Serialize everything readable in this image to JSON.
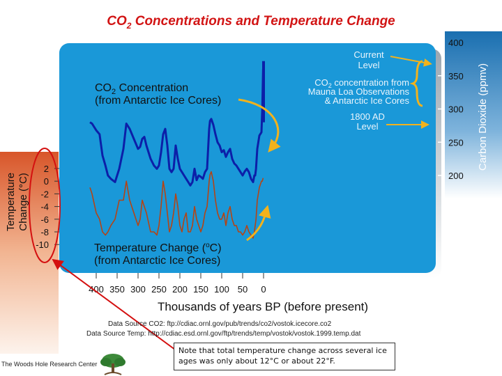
{
  "title_main": "CO",
  "title_sub": "2",
  "title_rest": " Concentrations and Temperature Change",
  "chart_data": {
    "type": "line",
    "xlabel": "Thousands of years BP (before present)",
    "x_ticks": [
      "400",
      "350",
      "300",
      "250",
      "200",
      "150",
      "100",
      "50",
      "0"
    ],
    "xlim": [
      400,
      0
    ],
    "y_right": {
      "label": "Carbon Dioxide (ppmv)",
      "ticks": [
        "400",
        "350",
        "300",
        "250",
        "200"
      ],
      "ylim": [
        180,
        400
      ]
    },
    "y_left": {
      "label_line1": "Temperature",
      "label_line2": "Change   (°C)",
      "ticks": [
        "2",
        "0",
        "-2",
        "-4",
        "-6",
        "-8",
        "-10"
      ],
      "ylim": [
        -10,
        2
      ]
    },
    "series": [
      {
        "name": "CO2 Concentration (from Antarctic Ice Cores)",
        "axis": "right",
        "color": "#0c1fa8",
        "x": [
          415,
          410,
          400,
          392,
          385,
          378,
          372,
          365,
          355,
          345,
          335,
          328,
          320,
          310,
          300,
          295,
          290,
          285,
          280,
          270,
          262,
          255,
          250,
          245,
          240,
          235,
          230,
          225,
          220,
          215,
          210,
          205,
          200,
          195,
          190,
          185,
          180,
          175,
          170,
          165,
          160,
          155,
          150,
          145,
          140,
          135,
          130,
          128,
          125,
          120,
          115,
          110,
          105,
          100,
          95,
          90,
          85,
          80,
          75,
          70,
          65,
          60,
          55,
          50,
          45,
          40,
          35,
          30,
          25,
          22,
          20,
          18,
          15,
          10,
          5,
          3,
          1
        ],
        "y": [
          280,
          278,
          268,
          262,
          230,
          215,
          200,
          195,
          190,
          210,
          240,
          278,
          270,
          255,
          240,
          243,
          255,
          258,
          245,
          225,
          215,
          210,
          215,
          235,
          262,
          270,
          245,
          210,
          205,
          210,
          245,
          225,
          210,
          205,
          200,
          195,
          190,
          185,
          190,
          210,
          193,
          200,
          198,
          195,
          205,
          210,
          270,
          282,
          285,
          276,
          262,
          250,
          245,
          235,
          238,
          228,
          235,
          240,
          225,
          218,
          215,
          210,
          205,
          200,
          206,
          210,
          205,
          195,
          190,
          200,
          200,
          210,
          240,
          260,
          265,
          300,
          360
        ]
      },
      {
        "name": "CO2 concentration from Mauna Loa Observations & Antarctic Ice Cores",
        "axis": "right",
        "color": "#0c1fa8",
        "x": [
          0,
          0
        ],
        "y": [
          280,
          372
        ]
      },
      {
        "name": "Temperature Change (from Antarctic Ice Cores)",
        "axis": "left",
        "color": "#b44415",
        "x": [
          415,
          410,
          400,
          392,
          385,
          378,
          372,
          365,
          355,
          345,
          335,
          328,
          320,
          310,
          300,
          295,
          290,
          285,
          280,
          270,
          262,
          255,
          250,
          245,
          240,
          235,
          230,
          225,
          220,
          215,
          210,
          205,
          200,
          195,
          190,
          185,
          180,
          175,
          170,
          165,
          160,
          155,
          150,
          145,
          140,
          135,
          130,
          128,
          125,
          120,
          115,
          110,
          105,
          100,
          95,
          90,
          85,
          80,
          75,
          70,
          65,
          60,
          55,
          50,
          45,
          40,
          35,
          30,
          25,
          22,
          20,
          18,
          15,
          10,
          5,
          3,
          1
        ],
        "y": [
          -1,
          -2,
          -5,
          -6,
          -8,
          -8.5,
          -8,
          -7,
          -6,
          -3,
          -3,
          0,
          -3,
          -5,
          -7,
          -6,
          -3,
          -4,
          -5,
          -8,
          -8,
          -8.5,
          -7,
          -4,
          0,
          -2,
          -5,
          -8,
          -7,
          -5,
          -2,
          -4,
          -7,
          -8,
          -6,
          -5,
          -8,
          -8,
          -7,
          -4,
          -6,
          -7,
          -8,
          -7,
          -5,
          -4,
          0,
          1,
          1.5,
          0,
          -3,
          -5,
          -6,
          -6,
          -5,
          -7,
          -5,
          -4,
          -6,
          -7,
          -7,
          -8,
          -8,
          -8.5,
          -8,
          -7,
          -8,
          -8.5,
          -9,
          -8,
          -7,
          -6,
          -3,
          -1,
          0,
          0,
          0.5
        ]
      }
    ],
    "annotations": {
      "co2_label_line1": "CO",
      "co2_label_sub": "2",
      "co2_label_rest": " Concentration",
      "co2_label_line2": "(from Antarctic Ice Cores)",
      "temp_label_line1": "Temperature Change (",
      "temp_label_sup": "o",
      "temp_label_rest": "C)",
      "temp_label_line2": "(from Antarctic Ice Cores)",
      "current_line1": "Current",
      "current_line2": "Level",
      "mauna_line1": "CO",
      "mauna_sub": "2",
      "mauna_rest": " concentration from",
      "mauna_line2": "Mauna Loa Observations",
      "mauna_line3": "& Antarctic Ice Cores",
      "ad_line1": "1800 AD",
      "ad_line2": "Level"
    },
    "sources": {
      "co2": "Data Source CO2: ftp://cdiac.ornl.gov/pub/trends/co2/vostok.icecore.co2",
      "temp": "Data Source Temp: http://cdiac.esd.ornl.gov/ftp/trends/temp/vostok/vostok.1999.temp.dat"
    }
  },
  "note_text": "Note that total temperature change across several ice ages was only about 12°C or about 22°F.",
  "org_name": "The Woods Hole Research Center",
  "colors": {
    "panel_blue": "#1a98d8",
    "co2_line": "#0c1fa8",
    "temp_line": "#b44415",
    "annotation_arrow": "#f2b21c",
    "title_red": "#d21414",
    "circle_red": "#d41010"
  }
}
